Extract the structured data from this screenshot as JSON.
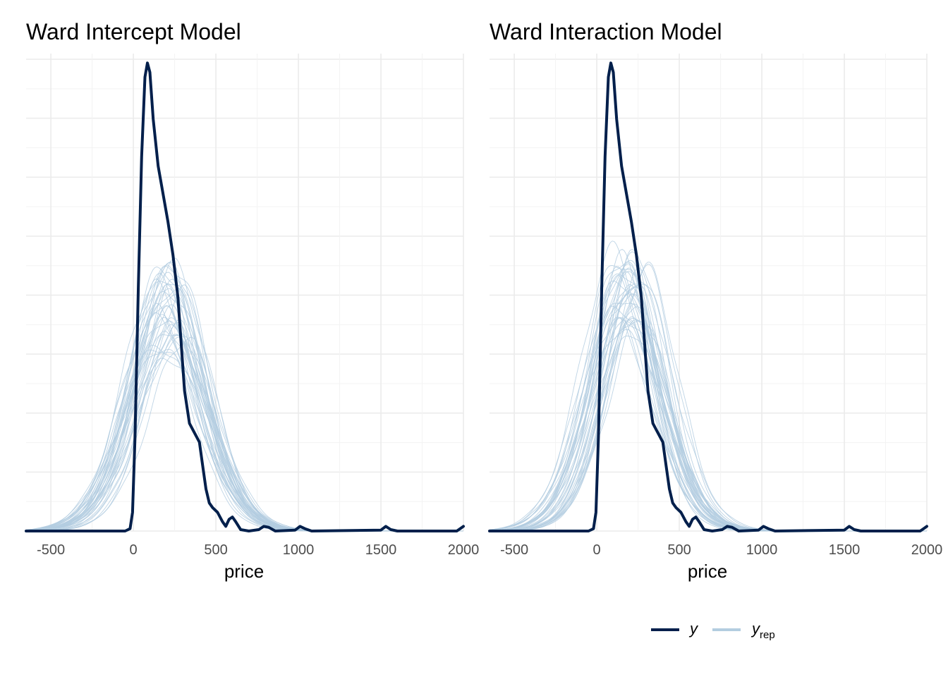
{
  "chart_data": [
    {
      "type": "line",
      "title": "Ward Intercept Model",
      "xlabel": "price",
      "ylabel": "",
      "xlim": [
        -650,
        2000
      ],
      "x_ticks": [
        -500,
        0,
        500,
        1000,
        1500,
        2000
      ],
      "y_ticks_visible": false,
      "grid": true,
      "y": {
        "name": "y",
        "color": "#011f4b",
        "points": [
          [
            -650,
            0
          ],
          [
            -50,
            0
          ],
          [
            -20,
            0.005
          ],
          [
            -5,
            0.04
          ],
          [
            10,
            0.2
          ],
          [
            30,
            0.52
          ],
          [
            50,
            0.8
          ],
          [
            70,
            0.97
          ],
          [
            85,
            1.0
          ],
          [
            100,
            0.98
          ],
          [
            120,
            0.88
          ],
          [
            150,
            0.78
          ],
          [
            180,
            0.72
          ],
          [
            210,
            0.66
          ],
          [
            240,
            0.59
          ],
          [
            270,
            0.5
          ],
          [
            290,
            0.4
          ],
          [
            310,
            0.3
          ],
          [
            340,
            0.23
          ],
          [
            370,
            0.21
          ],
          [
            400,
            0.19
          ],
          [
            420,
            0.14
          ],
          [
            440,
            0.09
          ],
          [
            460,
            0.06
          ],
          [
            480,
            0.05
          ],
          [
            510,
            0.04
          ],
          [
            540,
            0.02
          ],
          [
            560,
            0.01
          ],
          [
            580,
            0.025
          ],
          [
            600,
            0.03
          ],
          [
            620,
            0.02
          ],
          [
            650,
            0.003
          ],
          [
            700,
            0
          ],
          [
            760,
            0.003
          ],
          [
            790,
            0.01
          ],
          [
            820,
            0.008
          ],
          [
            860,
            0
          ],
          [
            980,
            0.002
          ],
          [
            1010,
            0.01
          ],
          [
            1040,
            0.005
          ],
          [
            1080,
            0
          ],
          [
            1500,
            0.002
          ],
          [
            1530,
            0.01
          ],
          [
            1560,
            0.003
          ],
          [
            1600,
            0
          ],
          [
            1960,
            0
          ],
          [
            1980,
            0.005
          ],
          [
            2000,
            0.01
          ]
        ]
      },
      "y_rep": {
        "name": "y_rep",
        "color": "#b3cde0",
        "draws": 40,
        "peak_x_range": [
          140,
          280
        ],
        "peak_y_range": [
          0.37,
          0.58
        ],
        "spread_range": [
          230,
          275
        ]
      }
    },
    {
      "type": "line",
      "title": "Ward Interaction Model",
      "xlabel": "price",
      "ylabel": "",
      "xlim": [
        -650,
        2000
      ],
      "x_ticks": [
        -500,
        0,
        500,
        1000,
        1500,
        2000
      ],
      "y_ticks_visible": false,
      "grid": true,
      "y": {
        "name": "y",
        "color": "#011f4b",
        "points": [
          [
            -650,
            0
          ],
          [
            -50,
            0
          ],
          [
            -20,
            0.005
          ],
          [
            -5,
            0.04
          ],
          [
            10,
            0.2
          ],
          [
            30,
            0.52
          ],
          [
            50,
            0.8
          ],
          [
            70,
            0.97
          ],
          [
            85,
            1.0
          ],
          [
            100,
            0.98
          ],
          [
            120,
            0.88
          ],
          [
            150,
            0.78
          ],
          [
            180,
            0.72
          ],
          [
            210,
            0.66
          ],
          [
            240,
            0.59
          ],
          [
            270,
            0.5
          ],
          [
            290,
            0.4
          ],
          [
            310,
            0.3
          ],
          [
            340,
            0.23
          ],
          [
            370,
            0.21
          ],
          [
            400,
            0.19
          ],
          [
            420,
            0.14
          ],
          [
            440,
            0.09
          ],
          [
            460,
            0.06
          ],
          [
            480,
            0.05
          ],
          [
            510,
            0.04
          ],
          [
            540,
            0.02
          ],
          [
            560,
            0.01
          ],
          [
            580,
            0.025
          ],
          [
            600,
            0.03
          ],
          [
            620,
            0.02
          ],
          [
            650,
            0.003
          ],
          [
            700,
            0
          ],
          [
            760,
            0.003
          ],
          [
            790,
            0.01
          ],
          [
            820,
            0.008
          ],
          [
            860,
            0
          ],
          [
            980,
            0.002
          ],
          [
            1010,
            0.01
          ],
          [
            1040,
            0.005
          ],
          [
            1080,
            0
          ],
          [
            1500,
            0.002
          ],
          [
            1530,
            0.01
          ],
          [
            1560,
            0.003
          ],
          [
            1600,
            0
          ],
          [
            1960,
            0
          ],
          [
            1980,
            0.005
          ],
          [
            2000,
            0.01
          ]
        ]
      },
      "y_rep": {
        "name": "y_rep",
        "color": "#b3cde0",
        "draws": 40,
        "peak_x_range": [
          120,
          260
        ],
        "peak_y_range": [
          0.42,
          0.6
        ],
        "spread_range": [
          215,
          260
        ]
      }
    }
  ],
  "legend": {
    "placement": "bottom",
    "items": [
      {
        "label": "y",
        "subscript": "",
        "color": "#011f4b"
      },
      {
        "label": "y",
        "subscript": "rep",
        "color": "#b3cde0"
      }
    ]
  }
}
